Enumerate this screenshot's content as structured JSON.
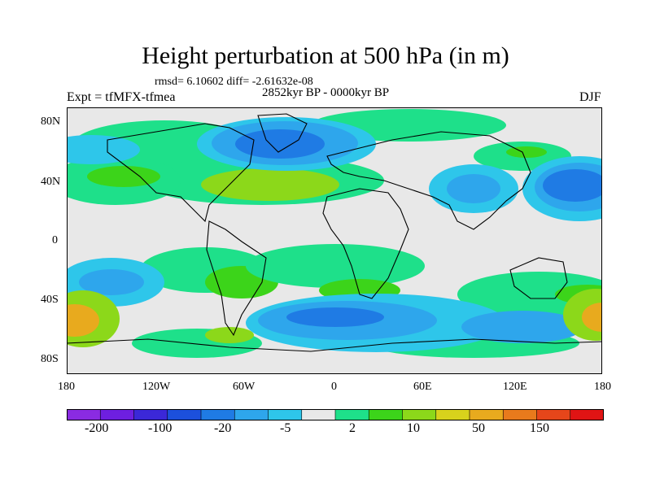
{
  "title": "Height perturbation at 500 hPa (in m)",
  "stats": "rmsd= 6.10602 diff= -2.61632e-08",
  "period": "2852kyr BP - 0000kyr BP",
  "experiment": "Expt = tfMFX-tfmea",
  "season": "DJF",
  "lat_labels": [
    "80N",
    "40N",
    "0",
    "40S",
    "80S"
  ],
  "lon_labels": [
    "180",
    "120W",
    "60W",
    "0",
    "60E",
    "120E",
    "180"
  ],
  "colorbar": {
    "colors": [
      "#8a2be2",
      "#6e1fe0",
      "#3b28d8",
      "#1c50dc",
      "#1f7be4",
      "#2ea6ec",
      "#2ec6ea",
      "#e8e8e8",
      "#1ee08a",
      "#3cd41a",
      "#8cd81a",
      "#d8d21c",
      "#e8aa1e",
      "#e87a1c",
      "#e6461a",
      "#e01414"
    ],
    "labels": [
      "-200",
      "-100",
      "-20",
      "-5",
      "2",
      "10",
      "50",
      "150"
    ]
  },
  "palette": {
    "neutral": "#e8e8e8",
    "light_blue": "#2ec6ea",
    "mid_blue": "#2ea6ec",
    "blue": "#1f7be4",
    "dark_blue": "#1c50dc",
    "teal_green": "#1ee08a",
    "green": "#3cd41a",
    "yellow_green": "#8cd81a",
    "yellow": "#d8d21c",
    "orange": "#e8aa1e"
  }
}
